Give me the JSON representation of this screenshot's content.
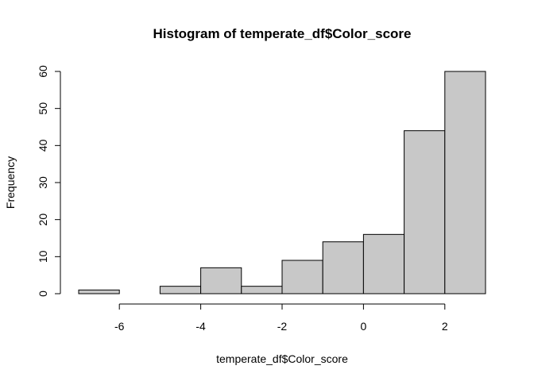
{
  "chart_data": {
    "type": "bar",
    "title": "Histogram of temperate_df$Color_score",
    "xlabel": "temperate_df$Color_score",
    "ylabel": "Frequency",
    "bins": [
      {
        "from": -7,
        "to": -6,
        "count": 1
      },
      {
        "from": -6,
        "to": -5,
        "count": 0
      },
      {
        "from": -5,
        "to": -4,
        "count": 2
      },
      {
        "from": -4,
        "to": -3,
        "count": 7
      },
      {
        "from": -3,
        "to": -2,
        "count": 2
      },
      {
        "from": -2,
        "to": -1,
        "count": 9
      },
      {
        "from": -1,
        "to": 0,
        "count": 14
      },
      {
        "from": 0,
        "to": 1,
        "count": 16
      },
      {
        "from": 1,
        "to": 2,
        "count": 44
      },
      {
        "from": 2,
        "to": 3,
        "count": 60
      }
    ],
    "xlim": [
      -7,
      3
    ],
    "ylim": [
      0,
      60
    ],
    "x_ticks": [
      -6,
      -4,
      -2,
      0,
      2
    ],
    "y_ticks": [
      0,
      10,
      20,
      30,
      40,
      50,
      60
    ],
    "grid": false,
    "bar_color": "#c8c8c8",
    "bar_border_color": "#000000"
  }
}
